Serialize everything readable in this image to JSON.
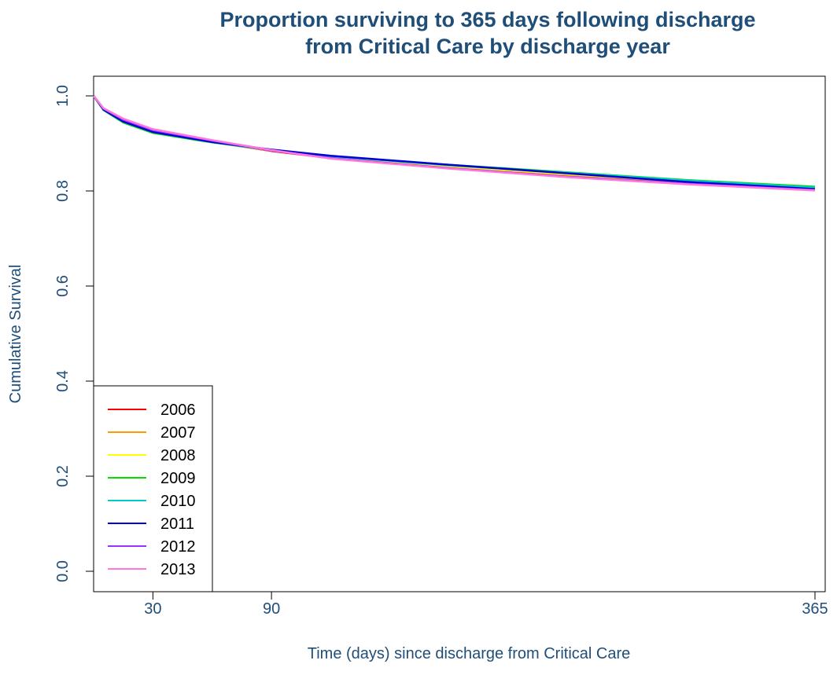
{
  "chart_data": {
    "type": "line",
    "title_lines": [
      "Proportion surviving to 365 days following discharge",
      "from Critical Care by discharge year"
    ],
    "xlabel": "Time (days) since discharge from Critical Care",
    "ylabel": "Cumulative Survival",
    "xlim": [
      0,
      365
    ],
    "ylim": [
      0,
      1
    ],
    "x_ticks": [
      30,
      90,
      365
    ],
    "y_ticks": [
      0.0,
      0.2,
      0.4,
      0.6,
      0.8,
      1.0
    ],
    "x_tick_labels": [
      "30",
      "90",
      "365"
    ],
    "y_tick_labels": [
      "0.0",
      "0.2",
      "0.4",
      "0.6",
      "0.8",
      "1.0"
    ],
    "grid": false,
    "legend": {
      "position": "bottom-left"
    },
    "series": [
      {
        "name": "2006",
        "color": "#ff0000",
        "x": [
          0,
          5,
          15,
          30,
          60,
          90,
          120,
          180,
          240,
          300,
          365
        ],
        "y": [
          1.0,
          0.972,
          0.948,
          0.926,
          0.903,
          0.884,
          0.869,
          0.849,
          0.831,
          0.816,
          0.803
        ]
      },
      {
        "name": "2007",
        "color": "#ff9900",
        "x": [
          0,
          5,
          15,
          30,
          60,
          90,
          120,
          180,
          240,
          300,
          365
        ],
        "y": [
          1.0,
          0.973,
          0.949,
          0.927,
          0.904,
          0.885,
          0.87,
          0.85,
          0.832,
          0.817,
          0.804
        ]
      },
      {
        "name": "2008",
        "color": "#ffff00",
        "x": [
          0,
          5,
          15,
          30,
          60,
          90,
          120,
          180,
          240,
          300,
          365
        ],
        "y": [
          1.0,
          0.972,
          0.948,
          0.925,
          0.903,
          0.885,
          0.871,
          0.852,
          0.835,
          0.82,
          0.806
        ]
      },
      {
        "name": "2009",
        "color": "#00dd00",
        "x": [
          0,
          5,
          15,
          30,
          60,
          90,
          120,
          180,
          240,
          300,
          365
        ],
        "y": [
          1.0,
          0.97,
          0.944,
          0.922,
          0.902,
          0.886,
          0.873,
          0.855,
          0.839,
          0.823,
          0.809
        ]
      },
      {
        "name": "2010",
        "color": "#00cccc",
        "x": [
          0,
          5,
          15,
          30,
          60,
          90,
          120,
          180,
          240,
          300,
          365
        ],
        "y": [
          1.0,
          0.971,
          0.946,
          0.924,
          0.903,
          0.886,
          0.873,
          0.854,
          0.838,
          0.822,
          0.807
        ]
      },
      {
        "name": "2011",
        "color": "#0000dd",
        "x": [
          0,
          5,
          15,
          30,
          60,
          90,
          120,
          180,
          240,
          300,
          365
        ],
        "y": [
          1.0,
          0.971,
          0.946,
          0.924,
          0.903,
          0.887,
          0.874,
          0.855,
          0.837,
          0.819,
          0.804
        ]
      },
      {
        "name": "2012",
        "color": "#9933ff",
        "x": [
          0,
          5,
          15,
          30,
          60,
          90,
          120,
          180,
          240,
          300,
          365
        ],
        "y": [
          1.0,
          0.973,
          0.95,
          0.928,
          0.906,
          0.885,
          0.869,
          0.848,
          0.83,
          0.815,
          0.802
        ]
      },
      {
        "name": "2013",
        "color": "#ff77dd",
        "x": [
          0,
          5,
          15,
          30,
          60,
          90,
          120,
          180,
          240,
          300,
          365
        ],
        "y": [
          1.0,
          0.974,
          0.952,
          0.93,
          0.907,
          0.886,
          0.868,
          0.847,
          0.829,
          0.814,
          0.801
        ]
      }
    ]
  }
}
